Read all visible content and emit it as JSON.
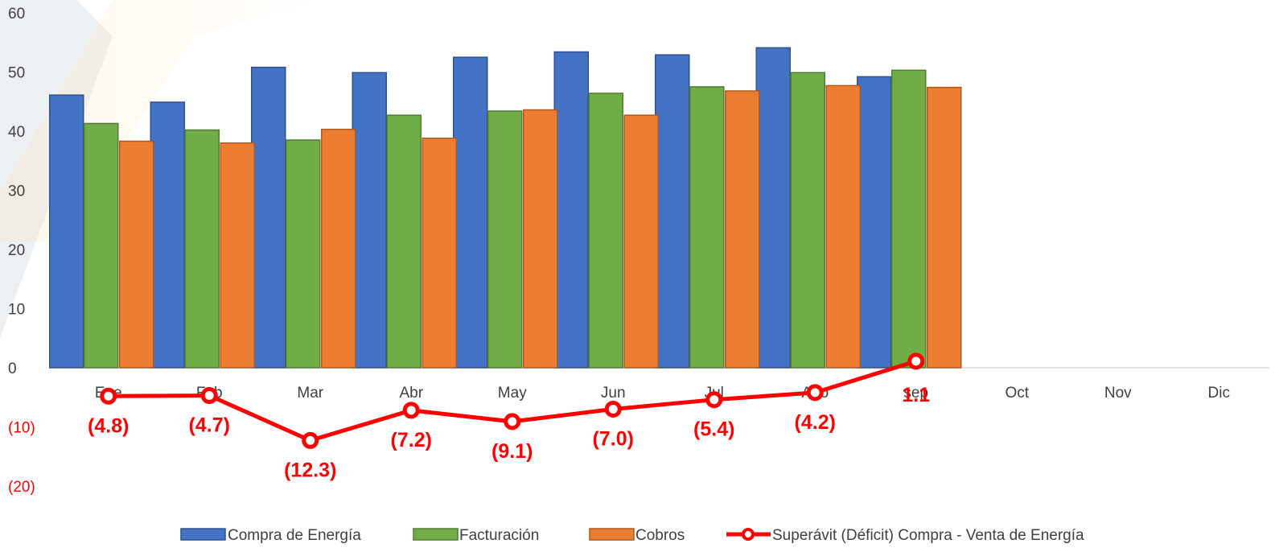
{
  "chart_data": {
    "type": "bar",
    "title": "",
    "xlabel": "",
    "ylabel": "",
    "categories": [
      "Ene",
      "Feb",
      "Mar",
      "Abr",
      "May",
      "Jun",
      "Jul",
      "Ago",
      "sep",
      "Oct",
      "Nov",
      "Dic"
    ],
    "ylim": [
      -20,
      60
    ],
    "yticks": [
      {
        "value": 60,
        "label": "60"
      },
      {
        "value": 50,
        "label": "50"
      },
      {
        "value": 40,
        "label": "40"
      },
      {
        "value": 30,
        "label": "30"
      },
      {
        "value": 20,
        "label": "20"
      },
      {
        "value": 10,
        "label": "10"
      },
      {
        "value": 0,
        "label": "0"
      },
      {
        "value": -10,
        "label": "(10)"
      },
      {
        "value": -20,
        "label": "(20)"
      }
    ],
    "grid": false,
    "legend_position": "bottom",
    "series": [
      {
        "name": "Compra de Energía",
        "type": "bar",
        "color": "#4472C4",
        "values": [
          46.1,
          44.9,
          50.8,
          49.9,
          52.5,
          53.4,
          52.9,
          54.1,
          49.2,
          null,
          null,
          null
        ]
      },
      {
        "name": "Facturación",
        "type": "bar",
        "color": "#70AD47",
        "values": [
          41.3,
          40.2,
          38.5,
          42.7,
          43.4,
          46.4,
          47.5,
          49.9,
          50.3,
          null,
          null,
          null
        ]
      },
      {
        "name": "Cobros",
        "type": "bar",
        "color": "#ED7D31",
        "values": [
          38.3,
          38.0,
          40.3,
          38.8,
          43.6,
          42.7,
          46.8,
          47.7,
          47.4,
          null,
          null,
          null
        ]
      },
      {
        "name": "Superávit (Déficit) Compra - Venta de Energía",
        "type": "line",
        "color": "#FF0000",
        "values": [
          -4.8,
          -4.7,
          -12.3,
          -7.2,
          -9.1,
          -7.0,
          -5.4,
          -4.2,
          1.1,
          null,
          null,
          null
        ],
        "labels": [
          "(4.8)",
          "(4.7)",
          "(12.3)",
          "(7.2)",
          "(9.1)",
          "(7.0)",
          "(5.4)",
          "(4.2)",
          "1.1",
          null,
          null,
          null
        ]
      }
    ]
  }
}
